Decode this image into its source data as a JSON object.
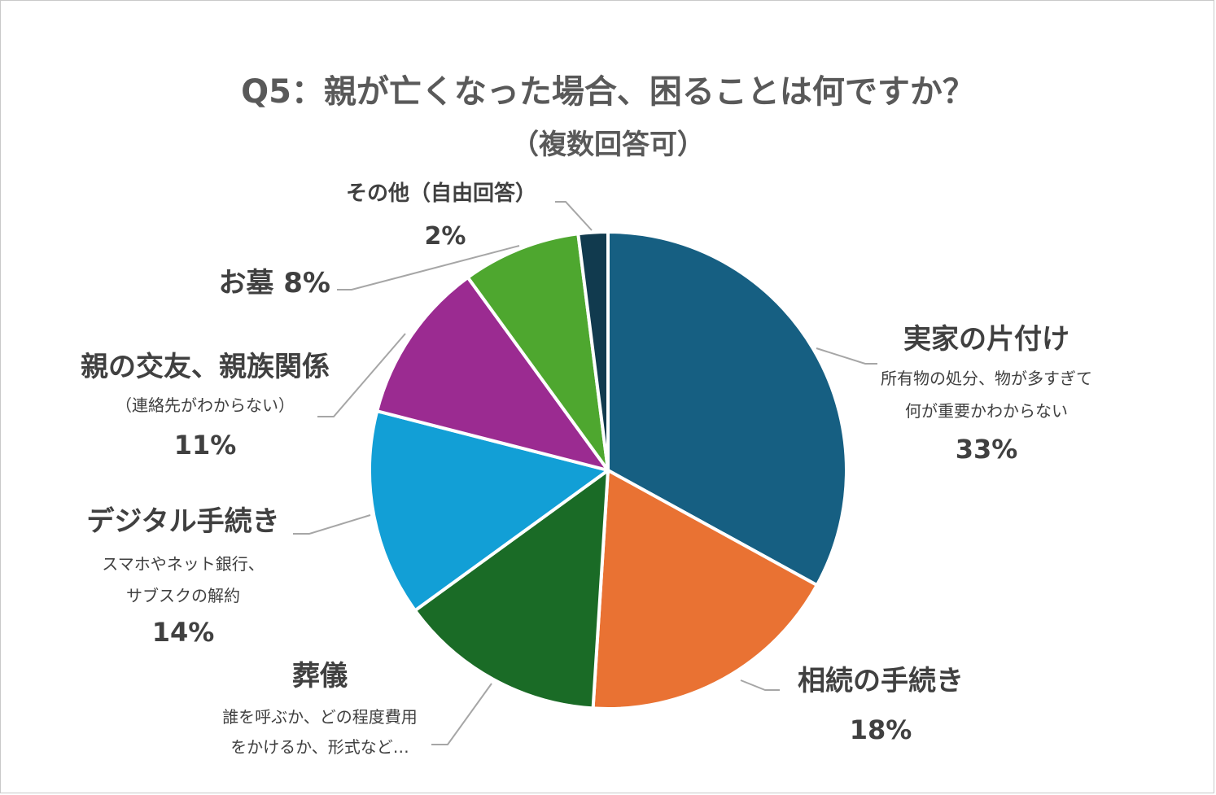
{
  "chart_data": {
    "type": "pie",
    "title": "Q5：親が亡くなった場合、困ることは何ですか？",
    "subtitle": "（複数回答可）",
    "slices": [
      {
        "name": "実家の片付け",
        "desc": [
          "所有物の処分、物が多すぎて",
          "何が重要かわからない"
        ],
        "value": 33,
        "label": "33%",
        "color": "#165F82"
      },
      {
        "name": "相続の手続き",
        "desc": [],
        "value": 18,
        "label": "18%",
        "color": "#E97233"
      },
      {
        "name": "葬儀",
        "desc": [
          "誰を呼ぶか、どの程度費用",
          "をかけるか、形式など…"
        ],
        "value": 14,
        "label": "",
        "color": "#1A6B26"
      },
      {
        "name": "デジタル手続き",
        "desc": [
          "スマホやネット銀行、",
          "サブスクの解約"
        ],
        "value": 14,
        "label": "14%",
        "color": "#129FD6"
      },
      {
        "name": "親の交友、親族関係",
        "desc": [
          "（連絡先がわからない）"
        ],
        "value": 11,
        "label": "11%",
        "color": "#9B2B91"
      },
      {
        "name": "お墓",
        "desc": [],
        "value": 8,
        "label": "8%",
        "color": "#4EA72F"
      },
      {
        "name": "その他（自由回答）",
        "desc": [],
        "value": 2,
        "label": "2%",
        "color": "#113A4E"
      }
    ],
    "legend": "none"
  }
}
